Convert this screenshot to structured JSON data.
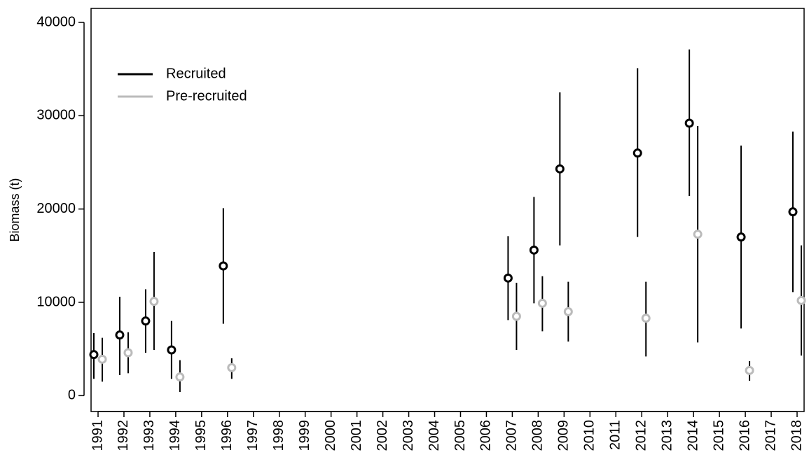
{
  "chart_data": {
    "type": "errorbar",
    "y_label": "Biomass (t)",
    "categories": [
      "1991",
      "1992",
      "1993",
      "1994",
      "1995",
      "1996",
      "1997",
      "1998",
      "1999",
      "2000",
      "2001",
      "2002",
      "2003",
      "2004",
      "2005",
      "2006",
      "2007",
      "2008",
      "2009",
      "2010",
      "2011",
      "2012",
      "2013",
      "2014",
      "2015",
      "2016",
      "2017",
      "2018"
    ],
    "ylim": [
      -1700,
      41500
    ],
    "yticks": [
      0,
      10000,
      20000,
      30000,
      40000
    ],
    "legend_position": "top-left",
    "error_bar_color": "#000000",
    "series": [
      {
        "name": "Recruited",
        "color": "#000000",
        "values": [
          4400,
          6500,
          8000,
          4900,
          null,
          13900,
          null,
          null,
          null,
          null,
          null,
          null,
          null,
          null,
          null,
          null,
          12600,
          15600,
          24300,
          null,
          null,
          26000,
          null,
          29200,
          null,
          17000,
          null,
          19700
        ],
        "lower": [
          1800,
          2200,
          4600,
          1800,
          null,
          7700,
          null,
          null,
          null,
          null,
          null,
          null,
          null,
          null,
          null,
          null,
          8100,
          9900,
          16100,
          null,
          null,
          17000,
          null,
          21400,
          null,
          7200,
          null,
          11100
        ],
        "upper": [
          6700,
          10600,
          11400,
          8000,
          null,
          20100,
          null,
          null,
          null,
          null,
          null,
          null,
          null,
          null,
          null,
          null,
          17100,
          21300,
          32500,
          null,
          null,
          35100,
          null,
          37100,
          null,
          26800,
          null,
          28300
        ]
      },
      {
        "name": "Pre-recruited",
        "color": "#bbbbbb",
        "values": [
          3900,
          4600,
          10100,
          2000,
          null,
          3000,
          null,
          null,
          null,
          null,
          null,
          null,
          null,
          null,
          null,
          null,
          8500,
          9900,
          9000,
          null,
          null,
          8300,
          null,
          17300,
          null,
          2700,
          null,
          10200
        ],
        "lower": [
          1500,
          2400,
          4900,
          400,
          null,
          1800,
          null,
          null,
          null,
          null,
          null,
          null,
          null,
          null,
          null,
          null,
          4900,
          6900,
          5800,
          null,
          null,
          4200,
          null,
          5700,
          null,
          1600,
          null,
          4300
        ],
        "upper": [
          6200,
          6800,
          15400,
          3800,
          null,
          4000,
          null,
          null,
          null,
          null,
          null,
          null,
          null,
          null,
          null,
          null,
          12100,
          12800,
          12200,
          null,
          null,
          12200,
          null,
          28900,
          null,
          3700,
          null,
          16100
        ]
      }
    ]
  }
}
